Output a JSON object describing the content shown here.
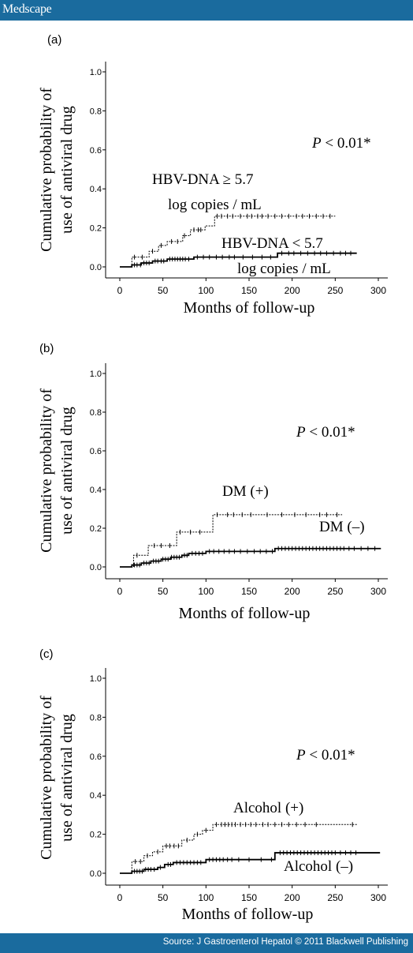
{
  "header": {
    "brand": "Medscape"
  },
  "footer": {
    "source": "Source: J Gastroenterol Hepatol © 2011 Blackwell Publishing"
  },
  "chart_data": [
    {
      "type": "line",
      "panel_label": "(a)",
      "xlabel": "Months of follow-up",
      "ylabel_lines": [
        "Cumulative probability of",
        "use of antiviral drug"
      ],
      "xlim": [
        0,
        300
      ],
      "ylim": [
        0,
        1.0
      ],
      "xticks": [
        "0",
        "50",
        "100",
        "150",
        "200",
        "250",
        "300"
      ],
      "yticks": [
        "0.0",
        "0.2",
        "0.4",
        "0.6",
        "0.8",
        "1.0"
      ],
      "p_value_italic": "P",
      "p_value_rest": " < 0.01*",
      "annotations": [
        {
          "lines": [
            "HBV-DNA ≥ 5.7",
            "log copies / mL"
          ],
          "series": 0
        },
        {
          "lines": [
            "HBV-DNA < 5.7",
            "log copies / mL"
          ],
          "series": 1
        }
      ],
      "series": [
        {
          "style": "dotted",
          "steps": [
            [
              0,
              0
            ],
            [
              14,
              0.05
            ],
            [
              34,
              0.08
            ],
            [
              45,
              0.11
            ],
            [
              55,
              0.13
            ],
            [
              73,
              0.16
            ],
            [
              82,
              0.19
            ],
            [
              99,
              0.21
            ],
            [
              110,
              0.26
            ],
            [
              250,
              0.26
            ]
          ],
          "censored": [
            17,
            26,
            38,
            48,
            60,
            67,
            75,
            86,
            91,
            94,
            113,
            118,
            125,
            131,
            140,
            148,
            153,
            160,
            165,
            172,
            180,
            188,
            196,
            205,
            212,
            220,
            228,
            236,
            244
          ]
        },
        {
          "style": "solid",
          "steps": [
            [
              0,
              0
            ],
            [
              14,
              0.01
            ],
            [
              25,
              0.02
            ],
            [
              38,
              0.03
            ],
            [
              55,
              0.04
            ],
            [
              86,
              0.05
            ],
            [
              183,
              0.07
            ],
            [
              275,
              0.07
            ]
          ],
          "censored": [
            17,
            20,
            24,
            28,
            31,
            34,
            41,
            44,
            48,
            51,
            58,
            61,
            64,
            67,
            70,
            73,
            76,
            80,
            90,
            97,
            104,
            112,
            119,
            127,
            133,
            143,
            154,
            165,
            175,
            188,
            196,
            202,
            210,
            218,
            226,
            233,
            240,
            248,
            256,
            262,
            268
          ]
        }
      ]
    },
    {
      "type": "line",
      "panel_label": "(b)",
      "xlabel": "Months of follow-up",
      "ylabel_lines": [
        "Cumulative probability of",
        "use of antiviral drug"
      ],
      "xlim": [
        0,
        300
      ],
      "ylim": [
        0,
        1.0
      ],
      "xticks": [
        "0",
        "50",
        "100",
        "150",
        "200",
        "250",
        "300"
      ],
      "yticks": [
        "0.0",
        "0.2",
        "0.4",
        "0.6",
        "0.8",
        "1.0"
      ],
      "p_value_italic": "P",
      "p_value_rest": " < 0.01*",
      "annotations": [
        {
          "lines": [
            "DM (+)"
          ],
          "series": 0
        },
        {
          "lines": [
            "DM (–)"
          ],
          "series": 1
        }
      ],
      "series": [
        {
          "style": "dotted",
          "steps": [
            [
              0,
              0
            ],
            [
              16,
              0.06
            ],
            [
              33,
              0.11
            ],
            [
              66,
              0.18
            ],
            [
              108,
              0.27
            ],
            [
              258,
              0.27
            ]
          ],
          "censored": [
            20,
            40,
            48,
            58,
            70,
            82,
            93,
            113,
            125,
            132,
            142,
            152,
            171,
            188,
            203,
            216,
            232,
            240,
            252
          ]
        },
        {
          "style": "solid",
          "steps": [
            [
              0,
              0
            ],
            [
              14,
              0.01
            ],
            [
              25,
              0.02
            ],
            [
              36,
              0.03
            ],
            [
              48,
              0.04
            ],
            [
              59,
              0.05
            ],
            [
              72,
              0.06
            ],
            [
              80,
              0.07
            ],
            [
              100,
              0.08
            ],
            [
              180,
              0.095
            ],
            [
              303,
              0.095
            ]
          ],
          "censored": [
            17,
            20,
            23,
            28,
            31,
            34,
            39,
            42,
            45,
            50,
            53,
            56,
            60,
            63,
            66,
            69,
            75,
            78,
            84,
            88,
            92,
            96,
            104,
            109,
            115,
            121,
            127,
            133,
            140,
            148,
            156,
            163,
            170,
            177,
            184,
            188,
            192,
            196,
            200,
            204,
            208,
            212,
            216,
            220,
            224,
            228,
            232,
            236,
            240,
            244,
            248,
            252,
            256,
            260,
            266,
            272,
            280,
            288,
            296
          ]
        }
      ]
    },
    {
      "type": "line",
      "panel_label": "(c)",
      "xlabel": "Months of follow-up",
      "ylabel_lines": [
        "Cumulative probability of",
        "use of antiviral drug"
      ],
      "xlim": [
        0,
        300
      ],
      "ylim": [
        0,
        1.0
      ],
      "xticks": [
        "0",
        "50",
        "100",
        "150",
        "200",
        "250",
        "300"
      ],
      "yticks": [
        "0.0",
        "0.2",
        "0.4",
        "0.6",
        "0.8",
        "1.0"
      ],
      "p_value_italic": "P",
      "p_value_rest": " < 0.01*",
      "annotations": [
        {
          "lines": [
            "Alcohol (+)"
          ],
          "series": 0
        },
        {
          "lines": [
            "Alcohol (–)"
          ],
          "series": 1
        }
      ],
      "series": [
        {
          "style": "dotted",
          "steps": [
            [
              0,
              0
            ],
            [
              14,
              0.06
            ],
            [
              28,
              0.09
            ],
            [
              38,
              0.11
            ],
            [
              50,
              0.14
            ],
            [
              72,
              0.17
            ],
            [
              86,
              0.2
            ],
            [
              96,
              0.22
            ],
            [
              108,
              0.25
            ],
            [
              275,
              0.25
            ]
          ],
          "censored": [
            18,
            24,
            32,
            44,
            54,
            58,
            63,
            68,
            78,
            90,
            100,
            112,
            118,
            122,
            126,
            130,
            134,
            140,
            146,
            152,
            158,
            166,
            172,
            180,
            188,
            196,
            205,
            215,
            228,
            270
          ]
        },
        {
          "style": "solid",
          "steps": [
            [
              0,
              0
            ],
            [
              14,
              0.01
            ],
            [
              28,
              0.02
            ],
            [
              44,
              0.03
            ],
            [
              52,
              0.045
            ],
            [
              62,
              0.055
            ],
            [
              100,
              0.07
            ],
            [
              180,
              0.105
            ],
            [
              302,
              0.105
            ]
          ],
          "censored": [
            17,
            20,
            23,
            26,
            30,
            33,
            36,
            40,
            47,
            56,
            59,
            66,
            70,
            74,
            78,
            82,
            86,
            90,
            94,
            104,
            108,
            112,
            116,
            120,
            125,
            130,
            138,
            150,
            164,
            176,
            186,
            190,
            194,
            198,
            202,
            206,
            210,
            214,
            218,
            222,
            226,
            230,
            234,
            238,
            242,
            246,
            250,
            256,
            262,
            268,
            274
          ]
        }
      ]
    }
  ]
}
